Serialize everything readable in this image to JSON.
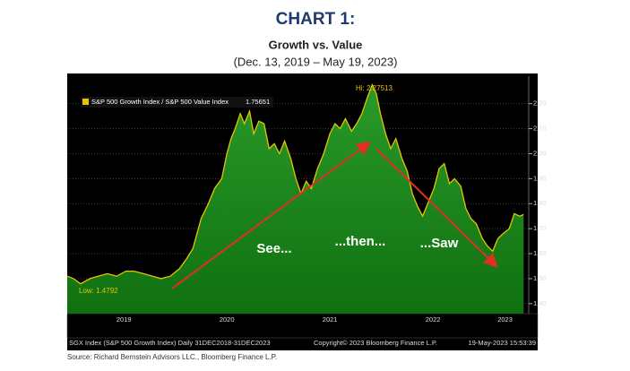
{
  "chart_data": {
    "type": "area",
    "title": "CHART 1:",
    "subtitle": "Growth vs. Value",
    "date_range": "(Dec. 13, 2019 – May 19, 2023)",
    "series": [
      {
        "name": "S&P 500 Growth Index / S&P 500 Value Index",
        "color": "#e8c400",
        "fill": "#1d8a1d",
        "last_value": 1.75651,
        "x": [
          2018.95,
          2019.01,
          2019.08,
          2019.17,
          2019.25,
          2019.34,
          2019.43,
          2019.52,
          2019.6,
          2019.69,
          2019.78,
          2019.86,
          2019.95,
          2020.04,
          2020.11,
          2020.17,
          2020.21,
          2020.25,
          2020.32,
          2020.38,
          2020.45,
          2020.5,
          2020.54,
          2020.58,
          2020.63,
          2020.67,
          2020.72,
          2020.76,
          2020.81,
          2020.86,
          2020.91,
          2020.96,
          2021.01,
          2021.06,
          2021.12,
          2021.17,
          2021.22,
          2021.27,
          2021.32,
          2021.38,
          2021.44,
          2021.5,
          2021.55,
          2021.6,
          2021.65,
          2021.71,
          2021.76,
          2021.81,
          2021.86,
          2021.91,
          2021.95,
          2021.99,
          2022.04,
          2022.09,
          2022.14,
          2022.2,
          2022.25,
          2022.3,
          2022.35,
          2022.4,
          2022.45,
          2022.51,
          2022.56,
          2022.61,
          2022.66,
          2022.71,
          2022.77,
          2022.82,
          2022.87,
          2022.92,
          2022.98,
          2023.03,
          2023.08,
          2023.13,
          2023.18,
          2023.24,
          2023.29,
          2023.34,
          2023.38
        ],
        "values": [
          1.51,
          1.5,
          1.4792,
          1.5,
          1.51,
          1.52,
          1.51,
          1.53,
          1.53,
          1.52,
          1.51,
          1.5,
          1.51,
          1.54,
          1.58,
          1.62,
          1.68,
          1.74,
          1.8,
          1.86,
          1.9,
          2.0,
          2.06,
          2.1,
          2.16,
          2.12,
          2.17,
          2.08,
          2.13,
          2.12,
          2.02,
          2.04,
          2.0,
          2.05,
          1.98,
          1.9,
          1.84,
          1.89,
          1.86,
          1.94,
          2.0,
          2.08,
          2.12,
          2.1,
          2.14,
          2.09,
          2.12,
          2.16,
          2.22,
          2.27513,
          2.24,
          2.16,
          2.08,
          2.02,
          2.06,
          1.98,
          1.93,
          1.84,
          1.79,
          1.75,
          1.8,
          1.86,
          1.94,
          1.96,
          1.88,
          1.9,
          1.87,
          1.78,
          1.74,
          1.72,
          1.66,
          1.63,
          1.61,
          1.66,
          1.68,
          1.7,
          1.76,
          1.75,
          1.75651
        ]
      }
    ],
    "xlim": [
      2018.95,
      2023.43
    ],
    "xticks": [
      {
        "value": 2019.5,
        "label": "2019"
      },
      {
        "value": 2020.5,
        "label": "2020"
      },
      {
        "value": 2021.5,
        "label": "2021"
      },
      {
        "value": 2022.5,
        "label": "2022"
      },
      {
        "value": 2023.2,
        "label": "2023"
      }
    ],
    "ylim": [
      1.36,
      2.31
    ],
    "yticks": [
      {
        "value": 1.4,
        "label": "1.40"
      },
      {
        "value": 1.5,
        "label": "1.50"
      },
      {
        "value": 1.6,
        "label": "1.60"
      },
      {
        "value": 1.7,
        "label": "1.70"
      },
      {
        "value": 1.8,
        "label": "1.80"
      },
      {
        "value": 1.9,
        "label": "1.90"
      },
      {
        "value": 2.0,
        "label": "2.00"
      },
      {
        "value": 2.1,
        "label": "2.10"
      },
      {
        "value": 2.2,
        "label": "2.20"
      }
    ],
    "grid": true,
    "high_label": "Hi: 2.27513",
    "low_label": "Low: 1.4792",
    "annotations": [
      "See...",
      "...then...",
      "...Saw"
    ],
    "footer": [
      "SGX Index (S&P 500 Growth Index)  Daily 31DEC2018-31DEC2023",
      "Copyright© 2023 Bloomberg Finance L.P.",
      "19-May-2023 15:53:39"
    ],
    "source": "Source:  Richard Bernstein Advisors LLC., Bloomberg Finance L.P."
  }
}
